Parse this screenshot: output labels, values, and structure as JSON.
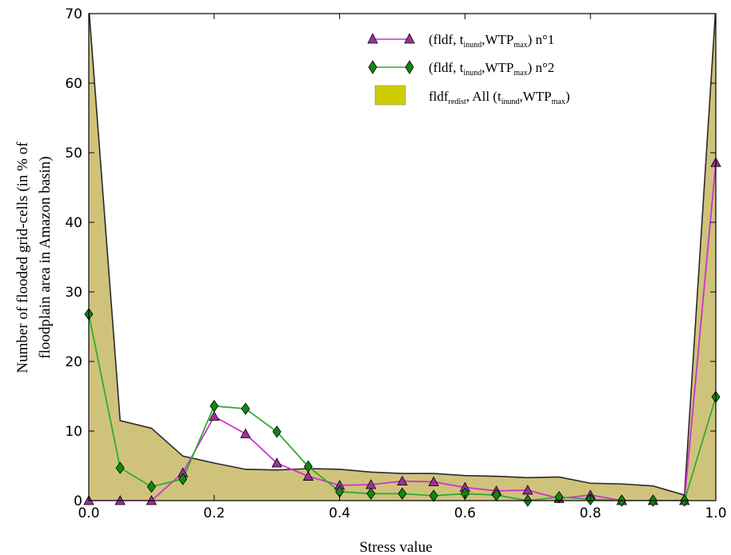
{
  "chart_data": {
    "type": "line",
    "xlabel": "Stress value",
    "ylabel_line1": "Number of flooded grid-cells (in % of",
    "ylabel_line2": "floodplain area in Amazon basin)",
    "xlim": [
      0.0,
      1.0
    ],
    "ylim": [
      0,
      70
    ],
    "xticks": [
      "0.0",
      "0.2",
      "0.4",
      "0.6",
      "0.8",
      "1.0"
    ],
    "xtick_values": [
      0.0,
      0.2,
      0.4,
      0.6,
      0.8,
      1.0
    ],
    "yticks": [
      "0",
      "10",
      "20",
      "30",
      "40",
      "50",
      "60",
      "70"
    ],
    "ytick_values": [
      0,
      10,
      20,
      30,
      40,
      50,
      60,
      70
    ],
    "grid": false,
    "legend_position": "top-right",
    "x": [
      0.0,
      0.05,
      0.1,
      0.15,
      0.2,
      0.25,
      0.3,
      0.35,
      0.4,
      0.45,
      0.5,
      0.55,
      0.6,
      0.65,
      0.7,
      0.75,
      0.8,
      0.85,
      0.9,
      0.95,
      1.0
    ],
    "area": {
      "legend": {
        "main": "fldf",
        "sub1": "redist",
        "mid": ", All (t",
        "sub2": "inund",
        "mid2": ",WTP",
        "sub3": "max",
        "end": ")"
      },
      "fill_color": "#cfc37c",
      "edge_color": "#2a2a2a",
      "legend_swatch_color": "#cccc00",
      "values": [
        71,
        11.5,
        10.4,
        6.4,
        5.4,
        4.5,
        4.4,
        4.6,
        4.5,
        4.1,
        3.9,
        3.9,
        3.6,
        3.5,
        3.3,
        3.4,
        2.5,
        2.4,
        2.1,
        0.8,
        71
      ]
    },
    "series": [
      {
        "legend": {
          "pre": "(fldf, t",
          "sub1": "inund",
          "mid": ",WTP",
          "sub2": "max",
          "end": ") n°1"
        },
        "line_color": "#cc33cc",
        "marker": "triangle",
        "marker_fill": "#993399",
        "values": [
          0,
          0,
          0,
          4.0,
          12.1,
          9.6,
          5.4,
          3.5,
          2.2,
          2.3,
          2.8,
          2.7,
          1.9,
          1.4,
          1.5,
          0.3,
          0.8,
          0,
          0,
          0,
          48.6
        ]
      },
      {
        "legend": {
          "pre": "(fldf, t",
          "sub1": "inund",
          "mid": ",WTP",
          "sub2": "max",
          "end": ") n°2"
        },
        "line_color": "#33aa33",
        "marker": "diamond",
        "marker_fill": "#118811",
        "values": [
          26.8,
          4.7,
          2.0,
          3.1,
          13.6,
          13.2,
          9.9,
          4.9,
          1.3,
          1.0,
          1.0,
          0.7,
          1.0,
          0.8,
          0,
          0.5,
          0.2,
          0,
          0,
          0,
          14.9
        ]
      }
    ]
  }
}
